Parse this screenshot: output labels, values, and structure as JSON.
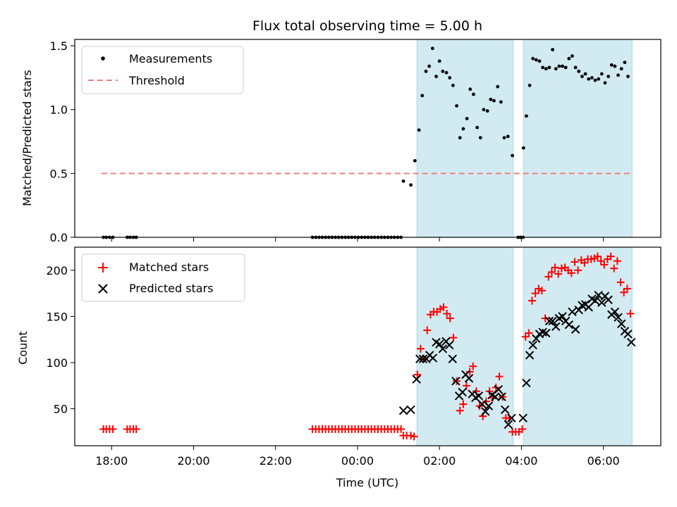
{
  "chart_data": {
    "title": "Flux total observing time = 5.00 h",
    "xlabel": "Time (UTC)",
    "x_unit": "hours since 00:00 UTC (negative = previous day)",
    "x_range": [
      -6.9,
      7.4
    ],
    "x_ticks": [
      {
        "value": -6,
        "label": "18:00"
      },
      {
        "value": -4,
        "label": "20:00"
      },
      {
        "value": -2,
        "label": "22:00"
      },
      {
        "value": 0,
        "label": "00:00"
      },
      {
        "value": 2,
        "label": "02:00"
      },
      {
        "value": 4,
        "label": "04:00"
      },
      {
        "value": 6,
        "label": "06:00"
      }
    ],
    "shaded_intervals": [
      [
        1.45,
        3.8
      ],
      [
        4.05,
        6.7
      ]
    ],
    "shade_color": "#add8e6",
    "panels": [
      {
        "type": "scatter",
        "ylabel": "Matched/Predicted stars",
        "ylim": [
          0,
          1.55
        ],
        "y_ticks": [
          {
            "value": 0,
            "label": "0.0"
          },
          {
            "value": 0.5,
            "label": "0.5"
          },
          {
            "value": 1.0,
            "label": "1.0"
          },
          {
            "value": 1.5,
            "label": "1.5"
          }
        ],
        "legend": [
          {
            "label": "Measurements",
            "marker": "dot",
            "color": "#000000"
          },
          {
            "label": "Threshold",
            "marker": "dashed-line",
            "color": "#f08080"
          }
        ],
        "threshold": {
          "value": 0.5,
          "x_start": -6.25,
          "x_end": 6.7,
          "color": "#f08080"
        },
        "measurements": [
          [
            -6.2,
            0
          ],
          [
            -6.13,
            0
          ],
          [
            -6.05,
            0
          ],
          [
            -5.97,
            0
          ],
          [
            -5.62,
            0
          ],
          [
            -5.55,
            0
          ],
          [
            -5.47,
            0
          ],
          [
            -5.4,
            0
          ],
          [
            -1.1,
            0
          ],
          [
            -1.02,
            0
          ],
          [
            -0.94,
            0
          ],
          [
            -0.86,
            0
          ],
          [
            -0.78,
            0
          ],
          [
            -0.7,
            0
          ],
          [
            -0.62,
            0
          ],
          [
            -0.54,
            0
          ],
          [
            -0.46,
            0
          ],
          [
            -0.38,
            0
          ],
          [
            -0.3,
            0
          ],
          [
            -0.22,
            0
          ],
          [
            -0.14,
            0
          ],
          [
            -0.06,
            0
          ],
          [
            0.02,
            0
          ],
          [
            0.1,
            0
          ],
          [
            0.18,
            0
          ],
          [
            0.26,
            0
          ],
          [
            0.34,
            0
          ],
          [
            0.42,
            0
          ],
          [
            0.5,
            0
          ],
          [
            0.58,
            0
          ],
          [
            0.66,
            0
          ],
          [
            0.74,
            0
          ],
          [
            0.82,
            0
          ],
          [
            0.9,
            0
          ],
          [
            0.98,
            0
          ],
          [
            1.06,
            0
          ],
          [
            1.12,
            0.44
          ],
          [
            1.3,
            0.41
          ],
          [
            1.4,
            0.6
          ],
          [
            1.5,
            0.84
          ],
          [
            1.58,
            1.11
          ],
          [
            1.67,
            1.3
          ],
          [
            1.75,
            1.34
          ],
          [
            1.83,
            1.48
          ],
          [
            1.92,
            1.26
          ],
          [
            2.0,
            1.38
          ],
          [
            2.08,
            1.3
          ],
          [
            2.17,
            1.29
          ],
          [
            2.25,
            1.25
          ],
          [
            2.33,
            1.19
          ],
          [
            2.42,
            1.03
          ],
          [
            2.5,
            0.78
          ],
          [
            2.58,
            0.85
          ],
          [
            2.67,
            0.93
          ],
          [
            2.75,
            1.16
          ],
          [
            2.83,
            1.12
          ],
          [
            2.92,
            0.86
          ],
          [
            3.0,
            0.78
          ],
          [
            3.08,
            1.0
          ],
          [
            3.17,
            0.99
          ],
          [
            3.25,
            1.08
          ],
          [
            3.33,
            1.07
          ],
          [
            3.42,
            1.18
          ],
          [
            3.5,
            1.06
          ],
          [
            3.58,
            0.78
          ],
          [
            3.67,
            0.79
          ],
          [
            3.78,
            0.64
          ],
          [
            3.92,
            0
          ],
          [
            3.98,
            0
          ],
          [
            4.04,
            0
          ],
          [
            4.05,
            0.7
          ],
          [
            4.12,
            0.95
          ],
          [
            4.2,
            1.19
          ],
          [
            4.28,
            1.4
          ],
          [
            4.36,
            1.39
          ],
          [
            4.44,
            1.38
          ],
          [
            4.52,
            1.33
          ],
          [
            4.6,
            1.32
          ],
          [
            4.68,
            1.33
          ],
          [
            4.76,
            1.47
          ],
          [
            4.84,
            1.32
          ],
          [
            4.92,
            1.34
          ],
          [
            5.0,
            1.34
          ],
          [
            5.08,
            1.33
          ],
          [
            5.16,
            1.4
          ],
          [
            5.24,
            1.42
          ],
          [
            5.32,
            1.33
          ],
          [
            5.4,
            1.3
          ],
          [
            5.48,
            1.26
          ],
          [
            5.56,
            1.28
          ],
          [
            5.64,
            1.24
          ],
          [
            5.72,
            1.25
          ],
          [
            5.8,
            1.23
          ],
          [
            5.88,
            1.24
          ],
          [
            5.96,
            1.28
          ],
          [
            6.04,
            1.21
          ],
          [
            6.12,
            1.26
          ],
          [
            6.2,
            1.35
          ],
          [
            6.28,
            1.34
          ],
          [
            6.36,
            1.27
          ],
          [
            6.44,
            1.32
          ],
          [
            6.52,
            1.37
          ],
          [
            6.6,
            1.26
          ]
        ]
      },
      {
        "type": "scatter",
        "ylabel": "Count",
        "ylim": [
          10,
          225
        ],
        "y_ticks": [
          {
            "value": 50,
            "label": "50"
          },
          {
            "value": 100,
            "label": "100"
          },
          {
            "value": 150,
            "label": "150"
          },
          {
            "value": 200,
            "label": "200"
          }
        ],
        "legend": [
          {
            "label": "Matched stars",
            "marker": "plus",
            "color": "#ff0000"
          },
          {
            "label": "Predicted stars",
            "marker": "x",
            "color": "#000000"
          }
        ],
        "matched": [
          [
            -6.2,
            28
          ],
          [
            -6.13,
            28
          ],
          [
            -6.05,
            28
          ],
          [
            -5.97,
            28
          ],
          [
            -5.62,
            28
          ],
          [
            -5.55,
            28
          ],
          [
            -5.47,
            28
          ],
          [
            -5.4,
            28
          ],
          [
            -1.1,
            28
          ],
          [
            -1.02,
            28
          ],
          [
            -0.94,
            28
          ],
          [
            -0.86,
            28
          ],
          [
            -0.78,
            28
          ],
          [
            -0.7,
            28
          ],
          [
            -0.62,
            28
          ],
          [
            -0.54,
            28
          ],
          [
            -0.46,
            28
          ],
          [
            -0.38,
            28
          ],
          [
            -0.3,
            28
          ],
          [
            -0.22,
            28
          ],
          [
            -0.14,
            28
          ],
          [
            -0.06,
            28
          ],
          [
            0.02,
            28
          ],
          [
            0.1,
            28
          ],
          [
            0.18,
            28
          ],
          [
            0.26,
            28
          ],
          [
            0.34,
            28
          ],
          [
            0.42,
            28
          ],
          [
            0.5,
            28
          ],
          [
            0.58,
            28
          ],
          [
            0.66,
            28
          ],
          [
            0.74,
            28
          ],
          [
            0.82,
            28
          ],
          [
            0.9,
            28
          ],
          [
            0.98,
            28
          ],
          [
            1.06,
            28
          ],
          [
            1.12,
            21
          ],
          [
            1.2,
            21
          ],
          [
            1.3,
            21
          ],
          [
            1.38,
            20
          ],
          [
            1.46,
            87
          ],
          [
            1.54,
            115
          ],
          [
            1.62,
            104
          ],
          [
            1.7,
            135
          ],
          [
            1.78,
            152
          ],
          [
            1.86,
            155
          ],
          [
            1.94,
            155
          ],
          [
            2.02,
            158
          ],
          [
            2.1,
            160
          ],
          [
            2.18,
            153
          ],
          [
            2.26,
            148
          ],
          [
            2.34,
            127
          ],
          [
            2.42,
            80
          ],
          [
            2.5,
            48
          ],
          [
            2.58,
            55
          ],
          [
            2.66,
            75
          ],
          [
            2.74,
            90
          ],
          [
            2.82,
            96
          ],
          [
            2.9,
            69
          ],
          [
            2.98,
            53
          ],
          [
            3.06,
            42
          ],
          [
            3.14,
            58
          ],
          [
            3.22,
            69
          ],
          [
            3.3,
            62
          ],
          [
            3.38,
            73
          ],
          [
            3.46,
            85
          ],
          [
            3.54,
            63
          ],
          [
            3.62,
            40
          ],
          [
            3.7,
            40
          ],
          [
            3.78,
            25
          ],
          [
            3.86,
            25
          ],
          [
            3.94,
            25
          ],
          [
            4.02,
            28
          ],
          [
            4.1,
            128
          ],
          [
            4.18,
            132
          ],
          [
            4.26,
            167
          ],
          [
            4.34,
            175
          ],
          [
            4.42,
            180
          ],
          [
            4.5,
            178
          ],
          [
            4.58,
            148
          ],
          [
            4.66,
            193
          ],
          [
            4.74,
            198
          ],
          [
            4.82,
            203
          ],
          [
            4.9,
            196
          ],
          [
            4.98,
            202
          ],
          [
            5.06,
            203
          ],
          [
            5.14,
            200
          ],
          [
            5.22,
            197
          ],
          [
            5.3,
            209
          ],
          [
            5.38,
            200
          ],
          [
            5.46,
            211
          ],
          [
            5.54,
            208
          ],
          [
            5.62,
            212
          ],
          [
            5.7,
            212
          ],
          [
            5.78,
            213
          ],
          [
            5.86,
            215
          ],
          [
            5.94,
            210
          ],
          [
            6.02,
            206
          ],
          [
            6.1,
            212
          ],
          [
            6.18,
            215
          ],
          [
            6.26,
            202
          ],
          [
            6.34,
            210
          ],
          [
            6.42,
            187
          ],
          [
            6.5,
            176
          ],
          [
            6.58,
            180
          ],
          [
            6.66,
            153
          ]
        ],
        "predicted": [
          [
            1.12,
            48
          ],
          [
            1.3,
            49
          ],
          [
            1.44,
            82
          ],
          [
            1.52,
            104
          ],
          [
            1.6,
            104
          ],
          [
            1.68,
            104
          ],
          [
            1.76,
            108
          ],
          [
            1.84,
            105
          ],
          [
            1.92,
            122
          ],
          [
            2.0,
            120
          ],
          [
            2.08,
            115
          ],
          [
            2.16,
            123
          ],
          [
            2.24,
            119
          ],
          [
            2.32,
            104
          ],
          [
            2.4,
            80
          ],
          [
            2.48,
            64
          ],
          [
            2.56,
            68
          ],
          [
            2.64,
            87
          ],
          [
            2.72,
            83
          ],
          [
            2.8,
            66
          ],
          [
            2.88,
            62
          ],
          [
            2.96,
            64
          ],
          [
            3.04,
            55
          ],
          [
            3.12,
            47
          ],
          [
            3.2,
            53
          ],
          [
            3.28,
            65
          ],
          [
            3.36,
            63
          ],
          [
            3.44,
            71
          ],
          [
            3.52,
            63
          ],
          [
            3.6,
            49
          ],
          [
            3.68,
            33
          ],
          [
            3.76,
            40
          ],
          [
            4.04,
            40
          ],
          [
            4.12,
            78
          ],
          [
            4.2,
            108
          ],
          [
            4.28,
            119
          ],
          [
            4.36,
            126
          ],
          [
            4.44,
            131
          ],
          [
            4.52,
            133
          ],
          [
            4.6,
            132
          ],
          [
            4.68,
            145
          ],
          [
            4.76,
            145
          ],
          [
            4.84,
            139
          ],
          [
            4.92,
            148
          ],
          [
            5.0,
            150
          ],
          [
            5.08,
            145
          ],
          [
            5.16,
            141
          ],
          [
            5.24,
            155
          ],
          [
            5.32,
            136
          ],
          [
            5.4,
            157
          ],
          [
            5.48,
            162
          ],
          [
            5.56,
            163
          ],
          [
            5.64,
            160
          ],
          [
            5.72,
            169
          ],
          [
            5.8,
            167
          ],
          [
            5.88,
            173
          ],
          [
            5.96,
            165
          ],
          [
            6.04,
            172
          ],
          [
            6.12,
            168
          ],
          [
            6.2,
            152
          ],
          [
            6.28,
            155
          ],
          [
            6.36,
            149
          ],
          [
            6.44,
            142
          ],
          [
            6.52,
            134
          ],
          [
            6.6,
            131
          ],
          [
            6.68,
            122
          ]
        ]
      }
    ]
  }
}
